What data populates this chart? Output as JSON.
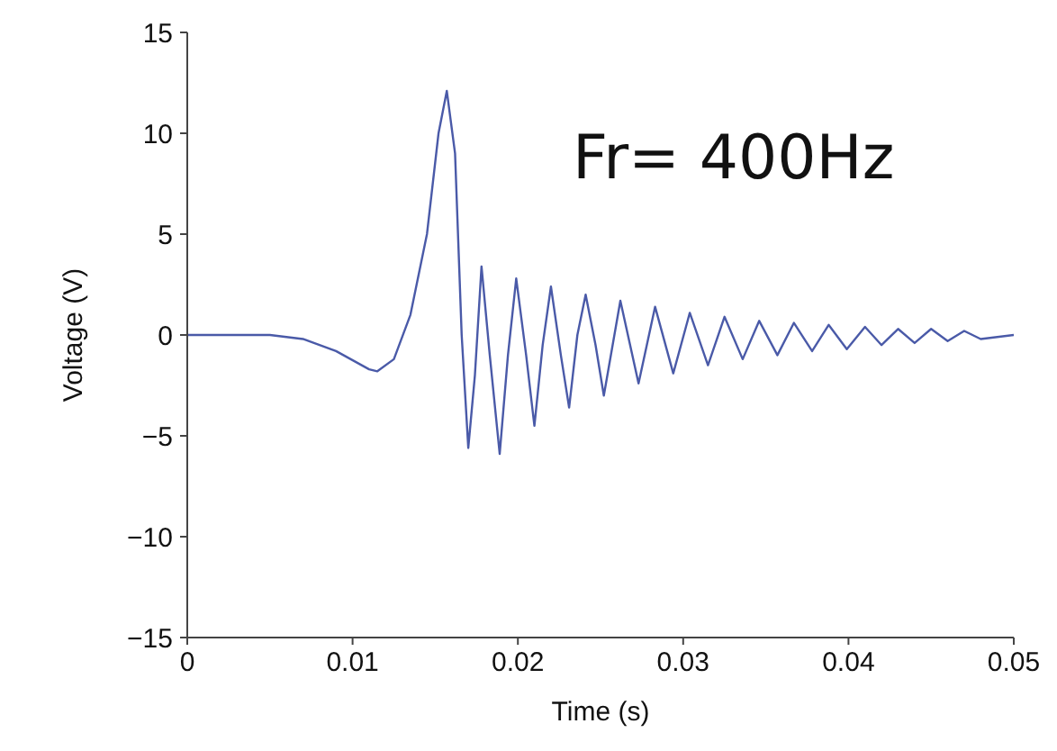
{
  "chart_data": {
    "type": "line",
    "xlabel": "Time (s)",
    "ylabel": "Voltage (V)",
    "annotations": [
      "Fr= 400Hz"
    ],
    "x": [
      0,
      0.005,
      0.007,
      0.009,
      0.011,
      0.0115,
      0.0125,
      0.0135,
      0.0145,
      0.0152,
      0.0157,
      0.0162,
      0.0166,
      0.017,
      0.0174,
      0.0178,
      0.0183,
      0.0189,
      0.0194,
      0.0199,
      0.0205,
      0.021,
      0.0215,
      0.022,
      0.0226,
      0.0231,
      0.0236,
      0.0241,
      0.0247,
      0.0252,
      0.0262,
      0.0273,
      0.0283,
      0.0294,
      0.0304,
      0.0315,
      0.0325,
      0.0336,
      0.0346,
      0.0357,
      0.0367,
      0.0378,
      0.0388,
      0.0399,
      0.041,
      0.042,
      0.043,
      0.044,
      0.045,
      0.046,
      0.047,
      0.048,
      0.05
    ],
    "series": [
      {
        "color": "#4a5aa8",
        "values": [
          0,
          0,
          -0.2,
          -0.8,
          -1.7,
          -1.8,
          -1.2,
          1,
          5,
          10,
          12.1,
          9,
          0,
          -5.6,
          -2,
          3.4,
          -1,
          -5.9,
          -1,
          2.8,
          -1,
          -4.5,
          -0.5,
          2.4,
          -1,
          -3.6,
          0,
          2,
          -0.5,
          -3,
          1.7,
          -2.4,
          1.4,
          -1.9,
          1.1,
          -1.5,
          0.9,
          -1.2,
          0.7,
          -1,
          0.6,
          -0.8,
          0.5,
          -0.7,
          0.4,
          -0.5,
          0.3,
          -0.4,
          0.3,
          -0.3,
          0.2,
          -0.2,
          0
        ]
      }
    ],
    "xlim": [
      0,
      0.05
    ],
    "xticks": [
      0,
      0.01,
      0.02,
      0.03,
      0.04,
      0.05
    ],
    "ylim": [
      -15,
      15
    ],
    "yticks": [
      -15,
      -10,
      -5,
      0,
      5,
      10,
      15
    ],
    "grid": false,
    "marker": "none",
    "line_style": "solid"
  }
}
